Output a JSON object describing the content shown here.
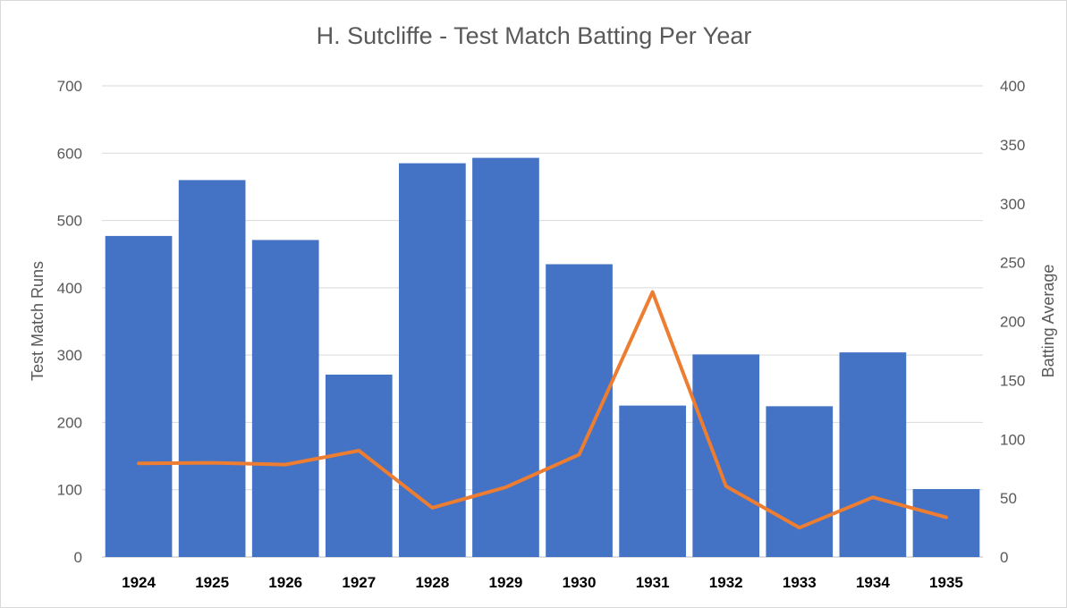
{
  "chart_data": {
    "type": "bar",
    "title": "H. Sutcliffe - Test Match Batting Per Year",
    "xlabel": "",
    "ylabel": "Test Match Runs",
    "y2label": "Batting Average",
    "ylim": [
      0,
      700
    ],
    "y2lim": [
      0,
      400
    ],
    "yticks": [
      "0",
      "100",
      "200",
      "300",
      "400",
      "500",
      "600",
      "700"
    ],
    "y2ticks": [
      "0",
      "50",
      "100",
      "150",
      "200",
      "250",
      "300",
      "350",
      "400"
    ],
    "grid": true,
    "legend": "none",
    "categories": [
      "1924",
      "1925",
      "1926",
      "1927",
      "1928",
      "1929",
      "1930",
      "1931",
      "1932",
      "1933",
      "1934",
      "1935"
    ],
    "series": [
      {
        "type": "bar",
        "axis": "left",
        "color": "#4472C4",
        "values": [
          477,
          560,
          471,
          271,
          585,
          593,
          435,
          225,
          301,
          224,
          304,
          101
        ]
      },
      {
        "type": "line",
        "axis": "right",
        "color": "#ED7D31",
        "values": [
          79.5,
          80.0,
          78.5,
          90.3,
          41.8,
          59.3,
          87.0,
          225.0,
          60.2,
          24.9,
          50.7,
          33.7
        ]
      }
    ]
  }
}
